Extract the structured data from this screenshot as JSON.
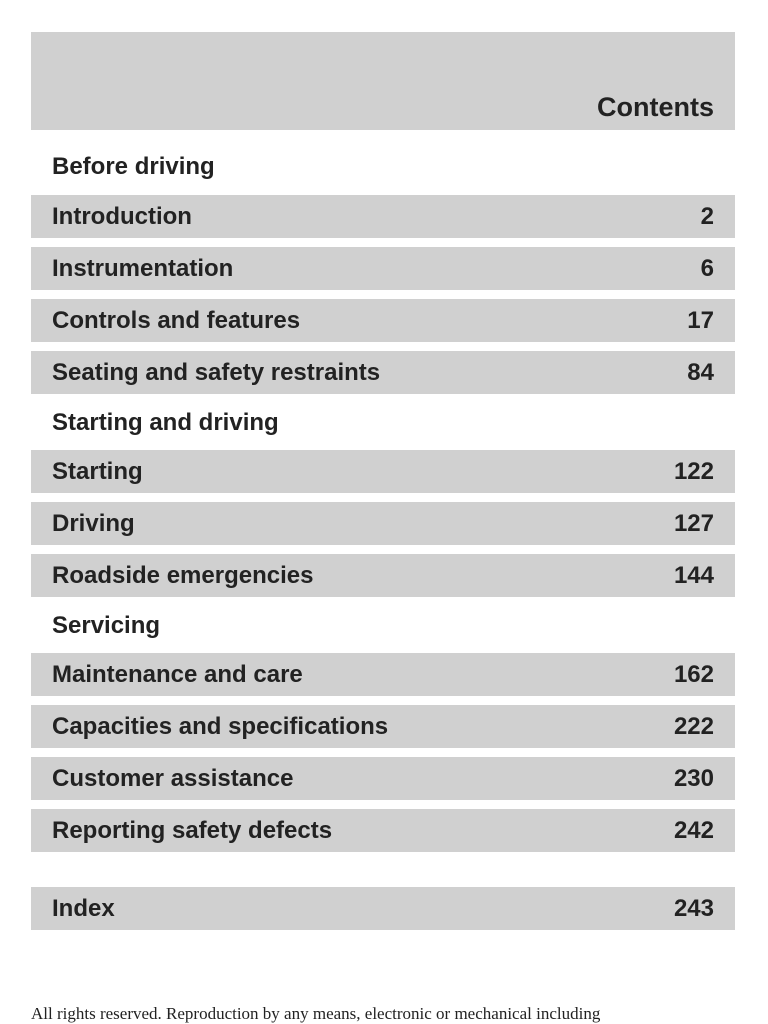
{
  "header": {
    "title": "Contents"
  },
  "sections": [
    {
      "heading": "Before driving",
      "entries": [
        {
          "label": "Introduction",
          "page": "2"
        },
        {
          "label": "Instrumentation",
          "page": "6"
        },
        {
          "label": "Controls and features",
          "page": "17"
        },
        {
          "label": "Seating and safety restraints",
          "page": "84"
        }
      ]
    },
    {
      "heading": "Starting and driving",
      "entries": [
        {
          "label": "Starting",
          "page": "122"
        },
        {
          "label": "Driving",
          "page": "127"
        },
        {
          "label": "Roadside emergencies",
          "page": "144"
        }
      ]
    },
    {
      "heading": "Servicing",
      "entries": [
        {
          "label": "Maintenance and care",
          "page": "162"
        },
        {
          "label": "Capacities and specifications",
          "page": "222"
        },
        {
          "label": "Customer assistance",
          "page": "230"
        },
        {
          "label": "Reporting safety defects",
          "page": "242"
        }
      ]
    }
  ],
  "index": {
    "label": "Index",
    "page": "243"
  },
  "footer": {
    "text": "All rights reserved. Reproduction by any means, electronic or mechanical including"
  },
  "colors": {
    "band": "#d0d0d0",
    "text": "#222222"
  }
}
